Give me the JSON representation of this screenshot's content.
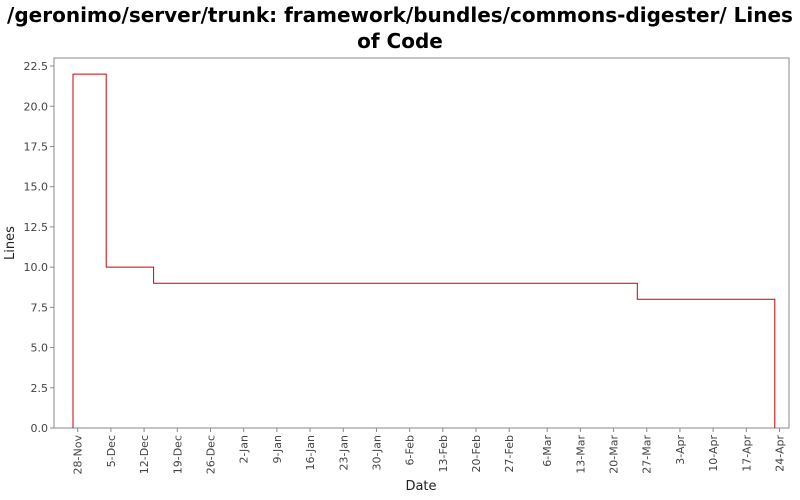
{
  "chart_data": {
    "type": "line",
    "step": true,
    "title": "/geronimo/server/trunk: framework/bundles/commons-digester/ Lines of Code",
    "xlabel": "Date",
    "ylabel": "Lines",
    "ylim": [
      0,
      23
    ],
    "yticks": [
      0.0,
      2.5,
      5.0,
      7.5,
      10.0,
      12.5,
      15.0,
      17.5,
      20.0,
      22.5
    ],
    "ytick_labels": [
      "0.0",
      "2.5",
      "5.0",
      "7.5",
      "10.0",
      "12.5",
      "15.0",
      "17.5",
      "20.0",
      "22.5"
    ],
    "xlim": [
      "2007-11-23",
      "2008-04-26"
    ],
    "xticks": [
      "2007-11-28",
      "2007-12-05",
      "2007-12-12",
      "2007-12-19",
      "2007-12-26",
      "2008-01-02",
      "2008-01-09",
      "2008-01-16",
      "2008-01-23",
      "2008-01-30",
      "2008-02-06",
      "2008-02-13",
      "2008-02-20",
      "2008-02-27",
      "2008-03-06",
      "2008-03-13",
      "2008-03-20",
      "2008-03-27",
      "2008-04-03",
      "2008-04-10",
      "2008-04-17",
      "2008-04-24"
    ],
    "xtick_labels": [
      "28-Nov",
      "5-Dec",
      "12-Dec",
      "19-Dec",
      "26-Dec",
      "2-Jan",
      "9-Jan",
      "16-Jan",
      "23-Jan",
      "30-Jan",
      "6-Feb",
      "13-Feb",
      "20-Feb",
      "27-Feb",
      "6-Mar",
      "13-Mar",
      "20-Mar",
      "27-Mar",
      "3-Apr",
      "10-Apr",
      "17-Apr",
      "24-Apr"
    ],
    "grid": false,
    "line_color": "#cc0000",
    "series": [
      {
        "points": [
          {
            "x": "2007-11-27",
            "y": 0
          },
          {
            "x": "2007-11-27",
            "y": 22
          },
          {
            "x": "2007-12-04",
            "y": 22
          },
          {
            "x": "2007-12-04",
            "y": 10
          },
          {
            "x": "2007-12-14",
            "y": 10
          },
          {
            "x": "2007-12-14",
            "y": 9
          },
          {
            "x": "2008-03-25",
            "y": 9
          },
          {
            "x": "2008-03-25",
            "y": 8
          },
          {
            "x": "2008-04-23",
            "y": 8
          },
          {
            "x": "2008-04-23",
            "y": 0
          }
        ]
      }
    ]
  }
}
